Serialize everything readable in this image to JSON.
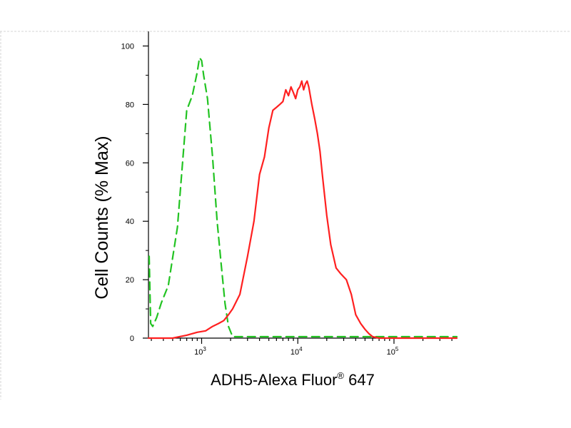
{
  "chart_data": {
    "type": "line",
    "title": "",
    "ylabel": "Cell Counts (% Max)",
    "xlabel": {
      "main": "ADH5-Alexa Fluor",
      "superscript": "®",
      "suffix": " 647"
    },
    "x_scale": "log",
    "xlim": [
      280,
      450000
    ],
    "ylim": [
      0,
      105
    ],
    "y_ticks": [
      {
        "value": 0,
        "label": "0"
      },
      {
        "value": 20,
        "label": "20"
      },
      {
        "value": 40,
        "label": "40"
      },
      {
        "value": 60,
        "label": "60"
      },
      {
        "value": 80,
        "label": "80"
      },
      {
        "value": 100,
        "label": "100"
      }
    ],
    "x_ticks": [
      {
        "value": 1000,
        "base": "10",
        "exp": "3"
      },
      {
        "value": 10000,
        "base": "10",
        "exp": "4"
      },
      {
        "value": 100000,
        "base": "10",
        "exp": "5"
      }
    ],
    "grid": false,
    "legend": "none",
    "series": [
      {
        "color": "#22c322",
        "dash": "dashed",
        "x": [
          285,
          295,
          310,
          340,
          380,
          450,
          560,
          700,
          800,
          900,
          950,
          1000,
          1050,
          1150,
          1300,
          1450,
          1600,
          1750,
          1900,
          2100,
          2500,
          4000,
          8000,
          20000,
          60000,
          200000,
          450000
        ],
        "y": [
          28,
          5,
          4,
          7,
          12,
          18,
          38,
          78,
          83,
          91,
          96,
          95,
          90,
          82,
          62,
          40,
          25,
          12,
          4,
          0.5,
          0.5,
          0.5,
          0.5,
          0.5,
          0.5,
          0.5,
          0.5
        ]
      },
      {
        "color": "#ff2020",
        "dash": "solid",
        "x": [
          280,
          500,
          700,
          900,
          1100,
          1300,
          1500,
          1700,
          1900,
          2100,
          2500,
          3000,
          3500,
          4000,
          4500,
          5000,
          5500,
          6000,
          6500,
          7000,
          7500,
          8000,
          8500,
          9000,
          9500,
          10000,
          10500,
          11000,
          11500,
          12000,
          12500,
          13000,
          14000,
          15000,
          16000,
          17000,
          18000,
          20000,
          22000,
          25000,
          28000,
          32000,
          36000,
          40000,
          45000,
          50000,
          55000,
          60000,
          70000,
          100000,
          200000,
          450000
        ],
        "y": [
          0,
          0,
          1,
          2,
          2.5,
          4,
          5,
          6,
          8,
          10,
          15,
          28,
          40,
          56,
          62,
          72,
          78,
          79,
          80,
          81,
          85,
          83,
          86,
          84,
          82,
          85,
          86,
          88,
          85,
          87,
          88,
          86,
          80,
          75,
          70,
          64,
          56,
          42,
          32,
          24,
          22,
          20,
          15,
          8,
          5,
          3,
          1.5,
          0.5,
          0,
          0,
          0,
          0
        ]
      }
    ]
  }
}
